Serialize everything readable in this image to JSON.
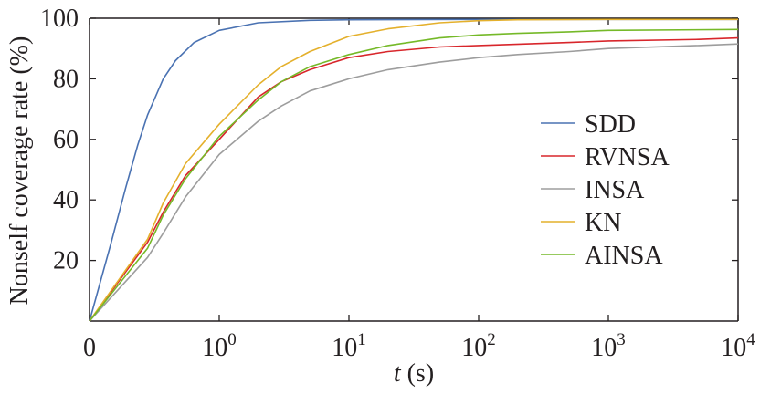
{
  "chart_data": {
    "type": "line",
    "title": "",
    "xlabel": {
      "var": "t",
      "unit": " (s)"
    },
    "ylabel": "Nonself coverage rate (%)",
    "xscale": "zero-then-log",
    "xlim": [
      0,
      10000
    ],
    "ylim": [
      0,
      100
    ],
    "x_ticks": [
      {
        "value": 0,
        "base": "0",
        "exp": ""
      },
      {
        "value": 1,
        "base": "10",
        "exp": "0"
      },
      {
        "value": 10,
        "base": "10",
        "exp": "1"
      },
      {
        "value": 100,
        "base": "10",
        "exp": "2"
      },
      {
        "value": 1000,
        "base": "10",
        "exp": "3"
      },
      {
        "value": 10000,
        "base": "10",
        "exp": "4"
      }
    ],
    "y_ticks": [
      {
        "value": 20,
        "label": "20"
      },
      {
        "value": 40,
        "label": "40"
      },
      {
        "value": 60,
        "label": "60"
      },
      {
        "value": 80,
        "label": "80"
      },
      {
        "value": 100,
        "label": "100"
      }
    ],
    "grid": false,
    "legend_position": "right-center",
    "series": [
      {
        "name": "SDD",
        "color": "#4a72b2",
        "points": [
          [
            0,
            0
          ],
          [
            0.05,
            25
          ],
          [
            0.1,
            44
          ],
          [
            0.15,
            58
          ],
          [
            0.2,
            68
          ],
          [
            0.3,
            80
          ],
          [
            0.4,
            86
          ],
          [
            0.6,
            92
          ],
          [
            1,
            96
          ],
          [
            2,
            98.5
          ],
          [
            5,
            99.3
          ],
          [
            10,
            99.5
          ],
          [
            100,
            99.6
          ],
          [
            1000,
            99.6
          ],
          [
            10000,
            99.6
          ]
        ]
      },
      {
        "name": "RVNSA",
        "color": "#d8262b",
        "points": [
          [
            0,
            0
          ],
          [
            0.2,
            26
          ],
          [
            0.3,
            36
          ],
          [
            0.5,
            48
          ],
          [
            1,
            60
          ],
          [
            2,
            74
          ],
          [
            3,
            79
          ],
          [
            5,
            83
          ],
          [
            10,
            87
          ],
          [
            20,
            89
          ],
          [
            50,
            90.5
          ],
          [
            100,
            91
          ],
          [
            500,
            92
          ],
          [
            1000,
            92.5
          ],
          [
            5000,
            93
          ],
          [
            10000,
            93.5
          ]
        ]
      },
      {
        "name": "INSA",
        "color": "#9d9d9d",
        "points": [
          [
            0,
            0
          ],
          [
            0.2,
            21
          ],
          [
            0.3,
            29
          ],
          [
            0.5,
            41
          ],
          [
            1,
            55
          ],
          [
            2,
            66
          ],
          [
            3,
            71
          ],
          [
            5,
            76
          ],
          [
            10,
            80
          ],
          [
            20,
            83
          ],
          [
            50,
            85.5
          ],
          [
            100,
            87
          ],
          [
            200,
            88
          ],
          [
            500,
            89
          ],
          [
            1000,
            90
          ],
          [
            5000,
            91
          ],
          [
            10000,
            91.5
          ]
        ]
      },
      {
        "name": "KN",
        "color": "#e4b02c",
        "points": [
          [
            0,
            0
          ],
          [
            0.2,
            27
          ],
          [
            0.3,
            39
          ],
          [
            0.5,
            52
          ],
          [
            1,
            65
          ],
          [
            2,
            78
          ],
          [
            3,
            84
          ],
          [
            5,
            89
          ],
          [
            10,
            94
          ],
          [
            20,
            96.5
          ],
          [
            50,
            98.5
          ],
          [
            100,
            99.2
          ],
          [
            200,
            99.5
          ],
          [
            1000,
            99.6
          ],
          [
            10000,
            99.6
          ]
        ]
      },
      {
        "name": "AINSA",
        "color": "#75b928",
        "points": [
          [
            0,
            0
          ],
          [
            0.2,
            24
          ],
          [
            0.3,
            35
          ],
          [
            0.5,
            47
          ],
          [
            1,
            61
          ],
          [
            2,
            73
          ],
          [
            3,
            79
          ],
          [
            5,
            84
          ],
          [
            10,
            88
          ],
          [
            20,
            91
          ],
          [
            50,
            93.5
          ],
          [
            100,
            94.5
          ],
          [
            200,
            95
          ],
          [
            500,
            95.5
          ],
          [
            1000,
            96
          ],
          [
            10000,
            96.3
          ]
        ]
      }
    ]
  }
}
